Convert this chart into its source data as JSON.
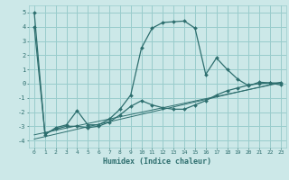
{
  "xlabel": "Humidex (Indice chaleur)",
  "bg_color": "#cce8e8",
  "grid_color": "#99cccc",
  "line_color": "#2d6e6e",
  "xlim": [
    -0.5,
    23.5
  ],
  "ylim": [
    -4.5,
    5.5
  ],
  "xticks": [
    0,
    1,
    2,
    3,
    4,
    5,
    6,
    7,
    8,
    9,
    10,
    11,
    12,
    13,
    14,
    15,
    16,
    17,
    18,
    19,
    20,
    21,
    22,
    23
  ],
  "yticks": [
    -4,
    -3,
    -2,
    -1,
    0,
    1,
    2,
    3,
    4,
    5
  ],
  "series1_x": [
    0,
    1,
    2,
    3,
    4,
    5,
    6,
    7,
    8,
    9,
    10,
    11,
    12,
    13,
    14,
    15,
    16,
    17,
    18,
    19,
    20,
    21,
    22,
    23
  ],
  "series1_y": [
    5.0,
    -3.6,
    -3.1,
    -2.9,
    -1.9,
    -2.9,
    -2.9,
    -2.5,
    -1.8,
    -0.8,
    2.5,
    3.9,
    4.3,
    4.35,
    4.4,
    3.9,
    0.65,
    1.8,
    1.0,
    0.3,
    -0.15,
    0.1,
    0.05,
    -0.1
  ],
  "series2_x": [
    0,
    1,
    2,
    3,
    4,
    5,
    6,
    7,
    8,
    9,
    10,
    11,
    12,
    13,
    14,
    15,
    16,
    17,
    18,
    19,
    20,
    21,
    22,
    23
  ],
  "series2_y": [
    4.0,
    -3.5,
    -3.2,
    -3.0,
    -3.0,
    -3.1,
    -3.0,
    -2.7,
    -2.2,
    -1.6,
    -1.2,
    -1.5,
    -1.7,
    -1.8,
    -1.8,
    -1.5,
    -1.2,
    -0.8,
    -0.5,
    -0.3,
    -0.1,
    0.0,
    0.05,
    0.05
  ],
  "refline1_x": [
    0,
    23
  ],
  "refline1_y": [
    -3.9,
    0.1
  ],
  "refline2_x": [
    0,
    23
  ],
  "refline2_y": [
    -3.6,
    0.05
  ]
}
